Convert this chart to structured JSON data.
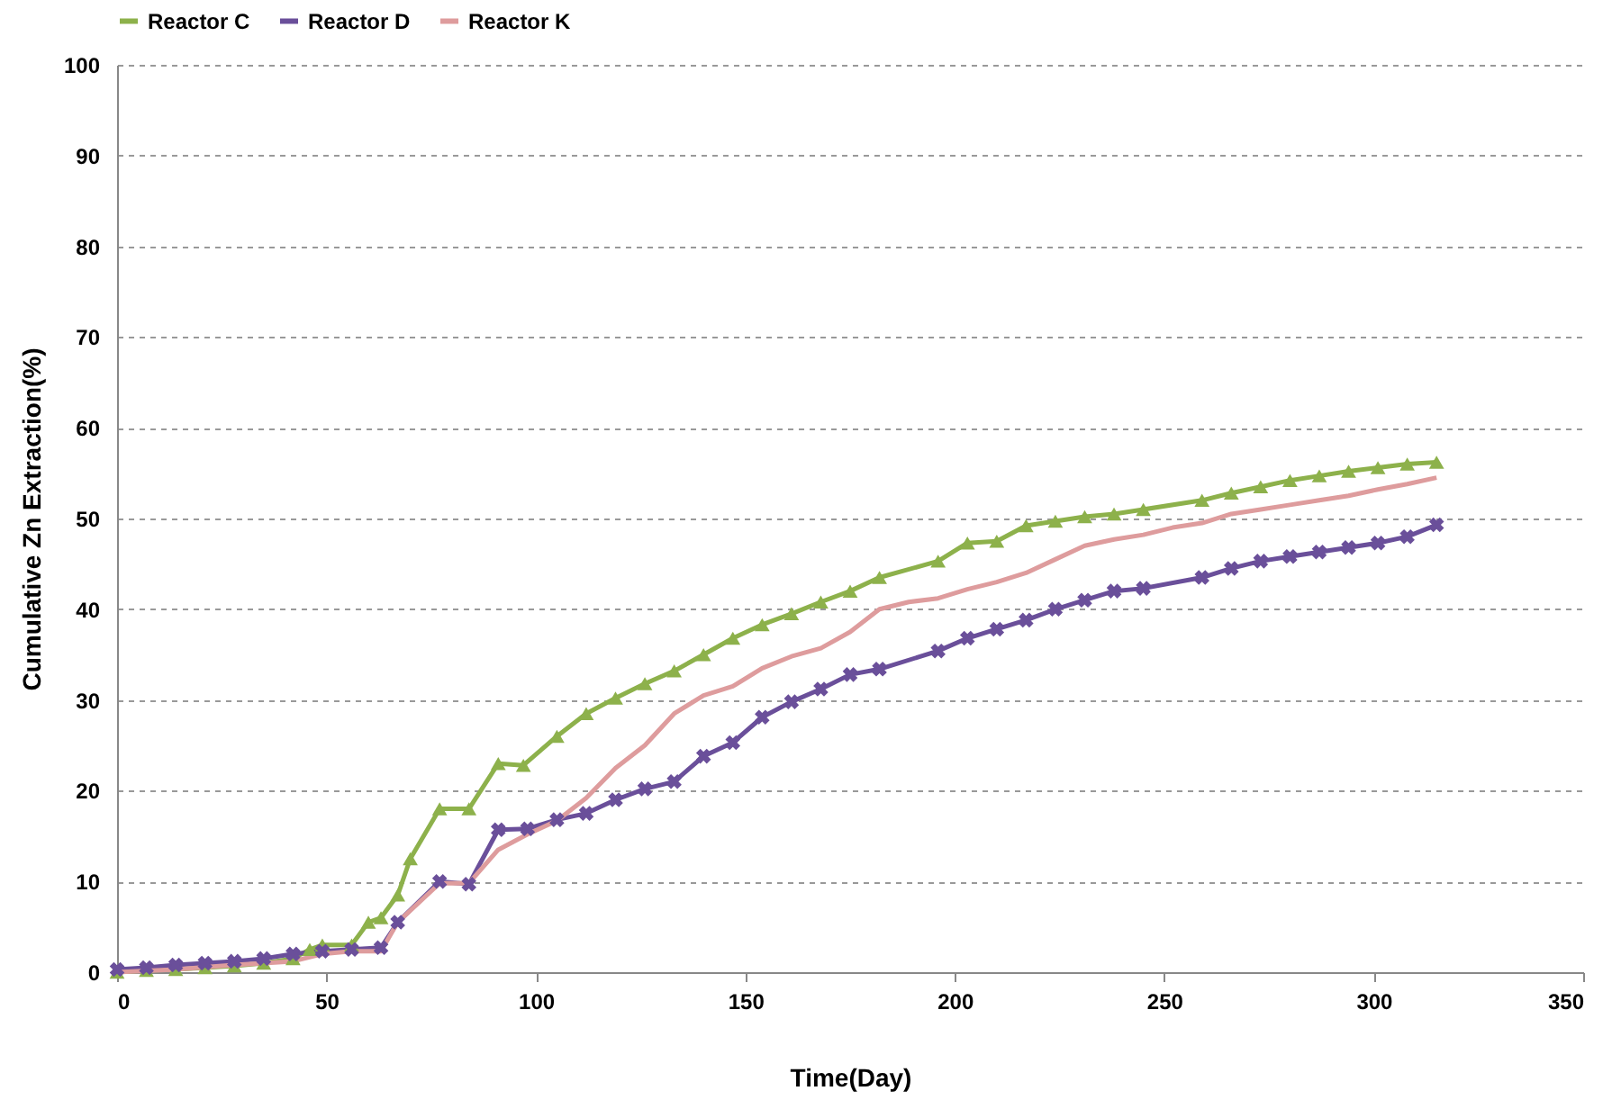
{
  "chart_data": {
    "type": "line",
    "xlabel": "Time(Day)",
    "ylabel": "Cumulative Zn Extraction(%)",
    "xlim": [
      0,
      350
    ],
    "xticks": [
      0,
      50,
      100,
      150,
      200,
      250,
      300,
      350
    ],
    "ylim": [
      0,
      100
    ],
    "yticks": [
      0,
      10,
      20,
      30,
      40,
      50,
      60,
      70,
      80,
      90,
      100
    ],
    "grid": "y",
    "legend": "top",
    "line_style": "solid",
    "series": [
      {
        "name": "Reactor C",
        "color": "#8db14b",
        "marker": "triangle",
        "x": [
          0,
          7,
          14,
          21,
          28,
          35,
          42,
          46,
          49,
          56,
          60,
          63,
          67,
          70,
          77,
          84,
          91,
          97,
          105,
          112,
          119,
          126,
          133,
          140,
          147,
          154,
          161,
          168,
          175,
          182,
          196,
          203,
          210,
          217,
          224,
          231,
          238,
          245,
          259,
          266,
          273,
          280,
          287,
          294,
          301,
          308,
          315
        ],
        "values": [
          0,
          0.2,
          0.3,
          0.5,
          0.7,
          1,
          1.5,
          2.5,
          3,
          3,
          5.5,
          6,
          8.5,
          12.5,
          18,
          18,
          23,
          22.8,
          26,
          28.5,
          30.2,
          31.8,
          33.2,
          35,
          36.8,
          38.3,
          39.5,
          40.8,
          42,
          43.5,
          45.3,
          47.3,
          47.5,
          49.2,
          49.7,
          50.2,
          50.5,
          51,
          52,
          52.8,
          53.5,
          54.2,
          54.7,
          55.2,
          55.6,
          56,
          56.2
        ]
      },
      {
        "name": "Reactor D",
        "color": "#6a4f9a",
        "marker": "cross",
        "x": [
          0,
          7,
          14,
          21,
          28,
          35,
          42,
          49,
          56,
          63,
          67,
          77,
          84,
          91,
          98,
          105,
          112,
          119,
          126,
          133,
          140,
          147,
          154,
          161,
          168,
          175,
          182,
          196,
          203,
          210,
          217,
          224,
          231,
          238,
          245,
          259,
          266,
          273,
          280,
          287,
          294,
          301,
          308,
          315
        ],
        "values": [
          0.3,
          0.5,
          0.8,
          1,
          1.2,
          1.5,
          2,
          2.3,
          2.5,
          2.7,
          5.5,
          10,
          9.7,
          15.7,
          15.8,
          16.8,
          17.5,
          19,
          20.2,
          21,
          23.8,
          25.3,
          28.1,
          29.8,
          31.2,
          32.8,
          33.4,
          35.4,
          36.8,
          37.8,
          38.8,
          40,
          41,
          42,
          42.3,
          43.5,
          44.5,
          45.3,
          45.8,
          46.3,
          46.8,
          47.3,
          48,
          49.3
        ]
      },
      {
        "name": "Reactor K",
        "color": "#de9c9d",
        "marker": "none",
        "x": [
          0,
          14,
          28,
          42,
          49,
          56,
          63,
          67,
          77,
          84,
          91,
          98,
          105,
          112,
          119,
          126,
          133,
          140,
          147,
          154,
          161,
          168,
          175,
          182,
          189,
          196,
          203,
          210,
          217,
          224,
          231,
          238,
          245,
          252,
          259,
          266,
          273,
          280,
          287,
          294,
          301,
          308,
          315
        ],
        "values": [
          0,
          0.3,
          0.8,
          1.2,
          2,
          2.3,
          2.3,
          5.5,
          9.8,
          9.8,
          13.5,
          15.2,
          16.7,
          19.2,
          22.5,
          25,
          28.5,
          30.5,
          31.5,
          33.5,
          34.8,
          35.7,
          37.5,
          40,
          40.8,
          41.2,
          42.2,
          43,
          44,
          45.5,
          47,
          47.7,
          48.2,
          49,
          49.5,
          50.5,
          51,
          51.5,
          52,
          52.5,
          53.2,
          53.8,
          54.5
        ]
      }
    ]
  }
}
